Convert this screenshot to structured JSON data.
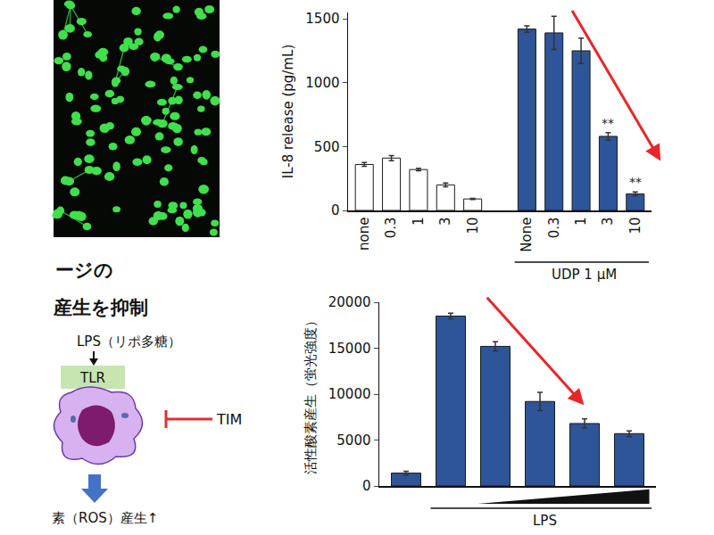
{
  "chart_data": [
    {
      "type": "bar",
      "y_label": "IL-8 release (pg/mL)",
      "categories": [
        "none",
        "0.3",
        "1",
        "3",
        "10",
        null,
        "None",
        "0.3",
        "1",
        "3",
        "10"
      ],
      "values": [
        360,
        410,
        320,
        200,
        90,
        null,
        1420,
        1390,
        1250,
        580,
        130
      ],
      "errors": [
        15,
        20,
        10,
        15,
        5,
        null,
        25,
        130,
        100,
        30,
        15
      ],
      "colors": [
        "#ffffff",
        "#ffffff",
        "#ffffff",
        "#ffffff",
        "#ffffff",
        null,
        "#2e5597",
        "#2e5597",
        "#2e5597",
        "#2e5597",
        "#2e5597"
      ],
      "ylim": [
        0,
        1550
      ],
      "yticks": [
        0,
        500,
        1000,
        1500
      ],
      "grid": false,
      "annotations": [
        {
          "index": 9,
          "text": "**"
        },
        {
          "index": 10,
          "text": "**"
        }
      ],
      "group_label": {
        "text": "UDP 1 μM",
        "from": 6,
        "to": 10
      }
    },
    {
      "type": "bar",
      "y_label": "活性酸素産生（蛍光強度）",
      "categories": [
        null,
        null,
        null,
        null,
        null,
        null
      ],
      "values": [
        1400,
        18500,
        15200,
        9200,
        6800,
        5700
      ],
      "errors": [
        200,
        300,
        500,
        1000,
        500,
        300
      ],
      "color": "#2e5597",
      "ylim": [
        0,
        20000
      ],
      "yticks": [
        0,
        5000,
        10000,
        15000,
        20000
      ],
      "grid": false,
      "tick_labels": "y",
      "group_label": {
        "text": "LPS",
        "from": 1,
        "to": 5
      }
    }
  ],
  "headline": [
    "ージの",
    "産生を抑制"
  ],
  "diagram": {
    "stimulus": "LPS（リポ多糖）",
    "receptor": "TLR",
    "inhibitor": "TIM",
    "output": "素（ROS）産生↑"
  }
}
